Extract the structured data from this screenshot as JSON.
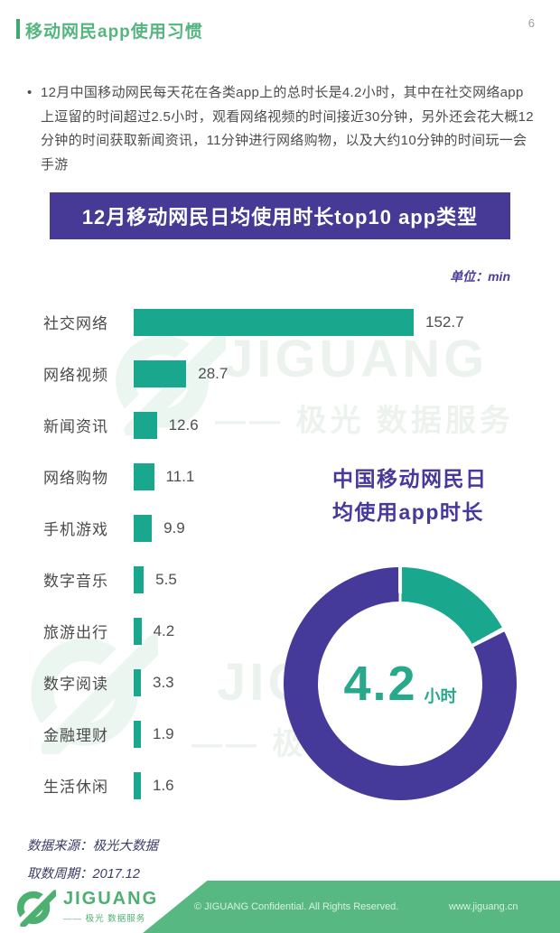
{
  "page_number": "6",
  "header": {
    "title": "移动网民app使用习惯"
  },
  "intro": {
    "bullet": "•",
    "text": "12月中国移动网民每天花在各类app上的总时长是4.2小时，其中在社交网络app上逗留的时间超过2.5小时，观看网络视频的时间接近30分钟，另外还会花大概12分钟的时间获取新闻资讯，11分钟进行网络购物，以及大约10分钟的时间玩一会手游"
  },
  "chart_data": [
    {
      "type": "bar",
      "orientation": "horizontal",
      "title": "12月移动网民日均使用时长top10 app类型",
      "unit_label": "单位：min",
      "categories": [
        "社交网络",
        "网络视频",
        "新闻资讯",
        "网络购物",
        "手机游戏",
        "数字音乐",
        "旅游出行",
        "数字阅读",
        "金融理财",
        "生活休闲"
      ],
      "values": [
        152.7,
        28.7,
        12.6,
        11.1,
        9.9,
        5.5,
        4.2,
        3.3,
        1.9,
        1.6
      ],
      "xlim": [
        0,
        160
      ],
      "bar_color": "#19a78e",
      "grid": false,
      "legend": "none"
    },
    {
      "type": "donut",
      "heading": [
        "中国移动网民日",
        "均使用app时长"
      ],
      "center_value": "4.2",
      "center_unit": "小时",
      "segments": [
        {
          "name": "daily-app-usage",
          "color": "#19a78e",
          "sweep_deg": 62
        },
        {
          "name": "remainder-of-day",
          "color": "#453a99",
          "sweep_deg": 298
        }
      ]
    }
  ],
  "footnotes": {
    "source": "数据来源：极光大数据",
    "period": "取数周期：2017.12"
  },
  "footer": {
    "brand": "JIGUANG",
    "brand_sub": "—— 极光 数据服务",
    "copyright": "© JIGUANG Confidential. All Rights Reserved.",
    "website": "www.jiguang.cn"
  },
  "watermarks": {
    "brand": "JIGUANG",
    "tagline": "—— 极光 数据服务"
  },
  "colors": {
    "header_green": "#55b57f",
    "bar_teal": "#19a78e",
    "banner_purple": "#463a96",
    "donut_purple": "#453a99",
    "footer_green": "#57b981"
  }
}
